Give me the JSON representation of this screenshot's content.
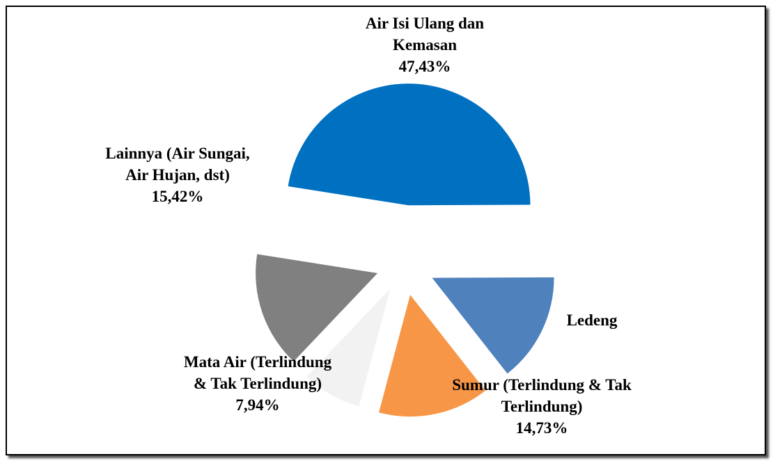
{
  "chart_data": {
    "type": "pie",
    "categories": [
      "Air Isi Ulang dan Kemasan",
      "Ledeng",
      "Sumur (Terlindung & Tak Terlindung)",
      "Mata Air (Terlindung & Tak Terlindung)",
      "Lainnya (Air Sungai, Air Hujan, dst)"
    ],
    "values": [
      47.43,
      14.48,
      14.73,
      7.94,
      15.42
    ],
    "value_labels": [
      "47,43%",
      null,
      "14,73%",
      "7,94%",
      "15,42%"
    ],
    "colors": [
      "#0070c0",
      "#4f81bd",
      "#f79646",
      "#f2f2f2",
      "#808080"
    ]
  }
}
